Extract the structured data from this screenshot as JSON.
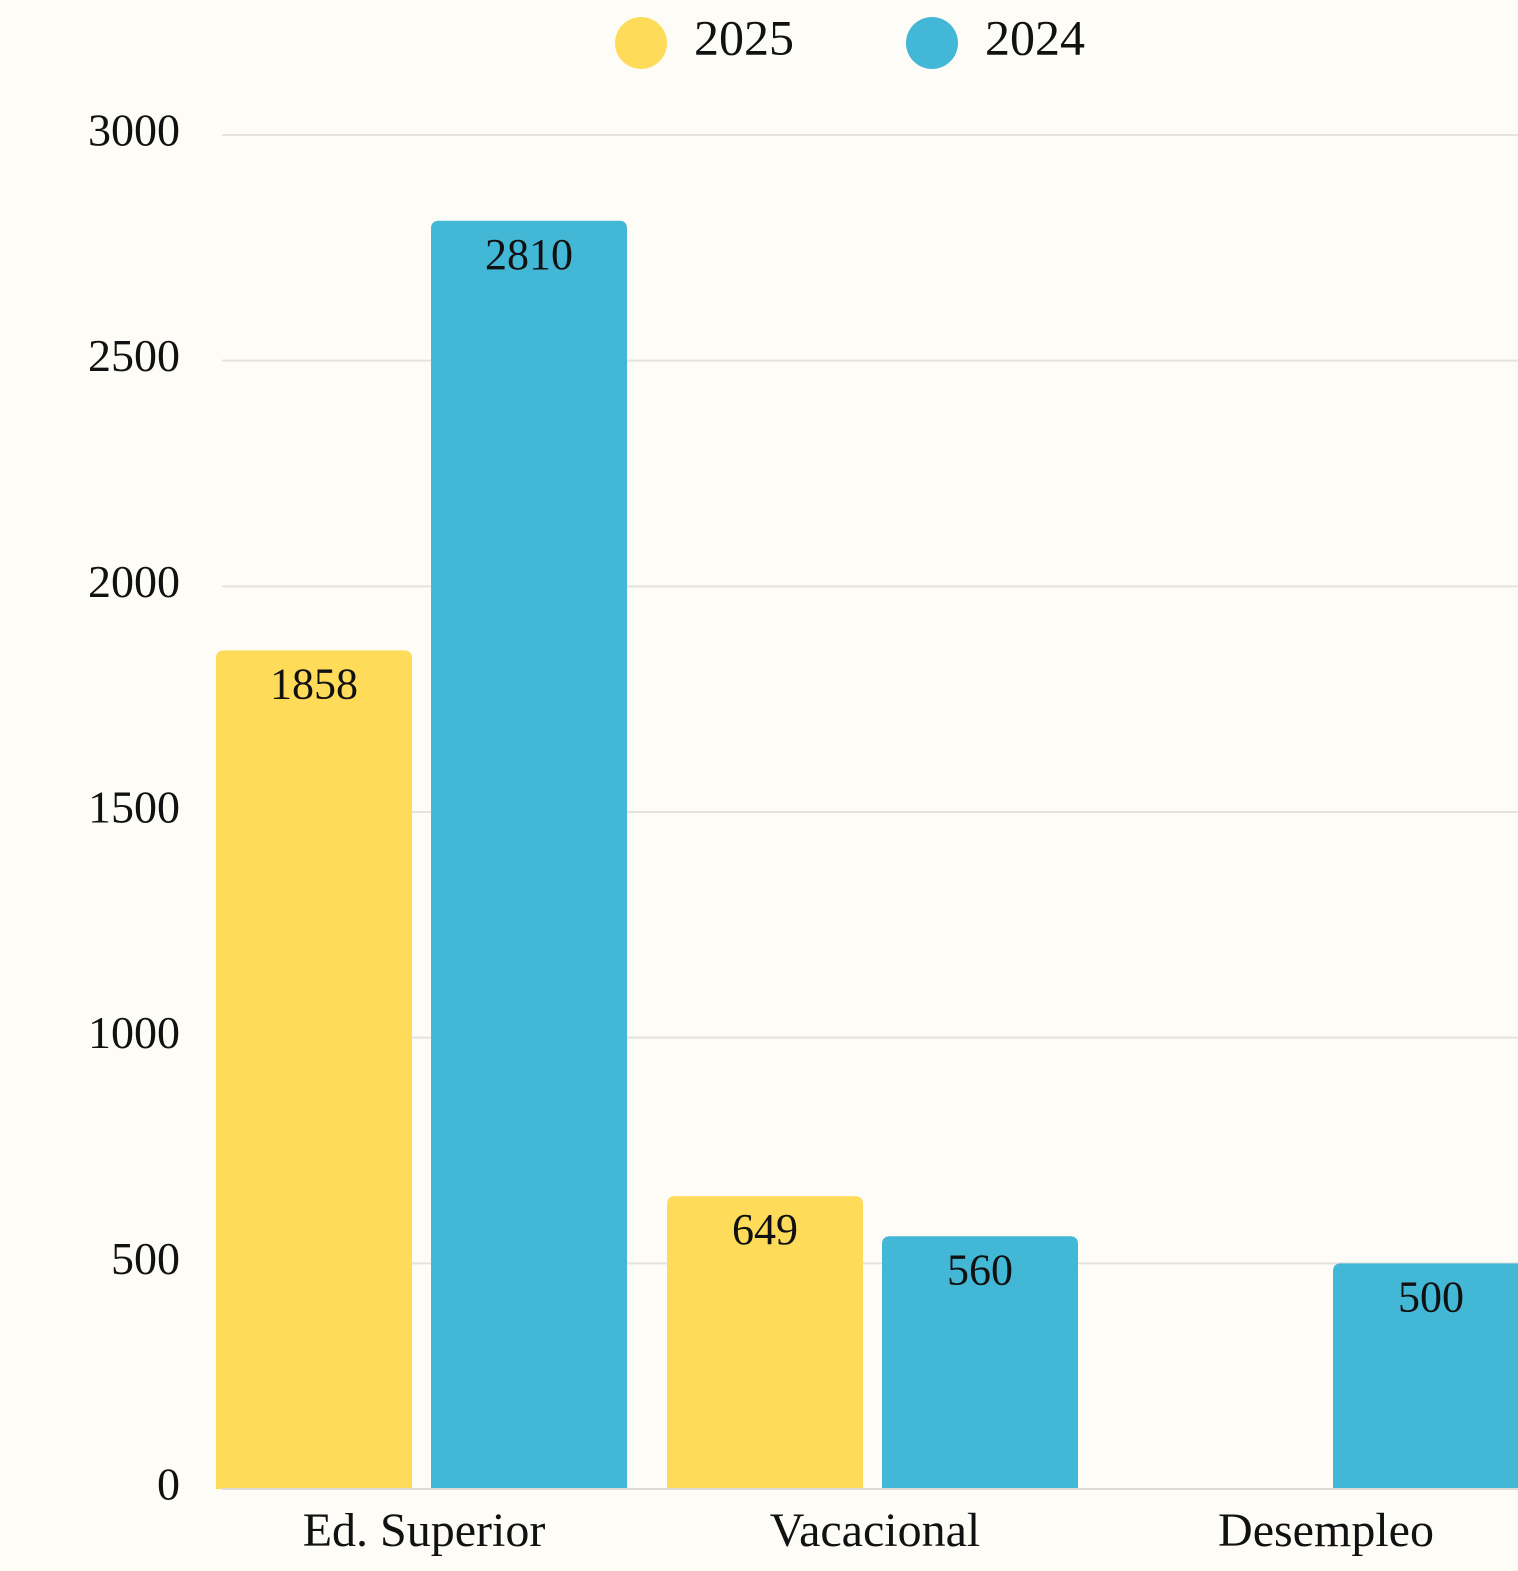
{
  "chart_data": {
    "type": "bar",
    "categories": [
      "Ed. Superior",
      "Vacacional",
      "Desempleo"
    ],
    "series": [
      {
        "name": "2025",
        "color": "#fedc5a",
        "values": [
          1858,
          649,
          null
        ]
      },
      {
        "name": "2024",
        "color": "#43b7d6",
        "values": [
          2810,
          560,
          500
        ]
      }
    ],
    "ylim": [
      0,
      3000
    ],
    "yticks": [
      0,
      500,
      1000,
      1500,
      2000,
      2500,
      3000
    ],
    "grid": true,
    "legend": "top"
  }
}
